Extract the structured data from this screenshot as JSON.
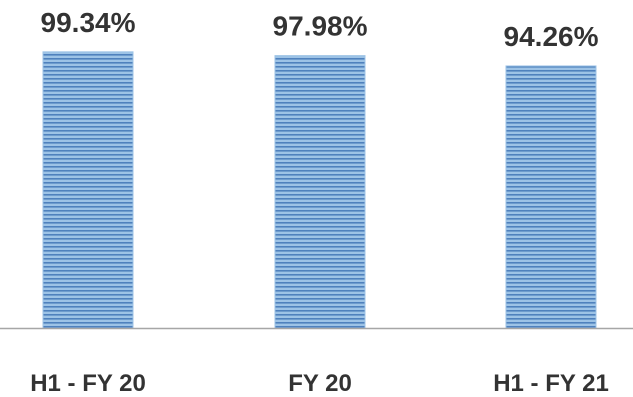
{
  "chart_data": {
    "type": "bar",
    "categories": [
      "H1 - FY 20",
      "FY 20",
      "H1 - FY 21"
    ],
    "values": [
      99.34,
      97.98,
      94.26
    ],
    "data_labels": [
      "99.34%",
      "97.98%",
      "94.26%"
    ],
    "ylim": [
      0,
      100
    ],
    "grid": false,
    "legend": "none",
    "bar_color": "#9dc3e6",
    "stripe_color": "#4f81bd",
    "axis_color": "#a6a6a6"
  }
}
